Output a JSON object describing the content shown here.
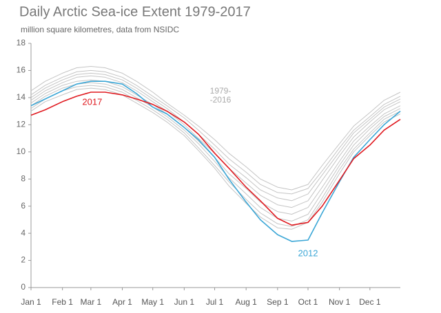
{
  "chart_data": {
    "type": "line",
    "title": "Daily Arctic Sea-ice Extent 1979-2017",
    "subtitle": "million square kilometres, data from NSIDC",
    "annotations": [
      "1979-",
      "-2016"
    ],
    "x": [
      1,
      15,
      32,
      46,
      60,
      74,
      91,
      105,
      121,
      135,
      152,
      166,
      182,
      196,
      213,
      227,
      244,
      258,
      274,
      288,
      305,
      319,
      335,
      349,
      365
    ],
    "xlim": [
      1,
      365
    ],
    "xticks": [
      {
        "value": 1,
        "label": "Jan 1"
      },
      {
        "value": 32,
        "label": "Feb 1"
      },
      {
        "value": 60,
        "label": "Mar 1"
      },
      {
        "value": 91,
        "label": "Apr 1"
      },
      {
        "value": 121,
        "label": "May 1"
      },
      {
        "value": 152,
        "label": "Jun 1"
      },
      {
        "value": 182,
        "label": "Jul 1"
      },
      {
        "value": 213,
        "label": "Aug 1"
      },
      {
        "value": 244,
        "label": "Sep 1"
      },
      {
        "value": 274,
        "label": "Oct 1"
      },
      {
        "value": 305,
        "label": "Nov 1"
      },
      {
        "value": 335,
        "label": "Dec 1"
      }
    ],
    "ylim": [
      0,
      18
    ],
    "yticks": [
      0,
      2,
      4,
      6,
      8,
      10,
      12,
      14,
      16,
      18
    ],
    "grid": false,
    "series": [
      {
        "color": "#c4c4c4",
        "values": [
          14.5,
          15.2,
          15.8,
          16.2,
          16.3,
          16.2,
          15.8,
          15.2,
          14.4,
          13.6,
          12.7,
          11.9,
          10.9,
          9.9,
          8.9,
          8.0,
          7.4,
          7.2,
          7.6,
          9.0,
          10.6,
          11.9,
          12.9,
          13.8,
          14.4
        ]
      },
      {
        "color": "#c4c4c4",
        "values": [
          14.2,
          14.9,
          15.5,
          15.9,
          16.0,
          15.9,
          15.5,
          14.9,
          14.1,
          13.4,
          12.5,
          11.6,
          10.5,
          9.5,
          8.5,
          7.6,
          7.0,
          6.9,
          7.3,
          8.6,
          10.3,
          11.6,
          12.6,
          13.5,
          14.1
        ]
      },
      {
        "color": "#c4c4c4",
        "values": [
          14.0,
          14.7,
          15.3,
          15.7,
          15.8,
          15.7,
          15.3,
          14.7,
          13.9,
          13.2,
          12.2,
          11.3,
          10.2,
          9.1,
          8.1,
          7.2,
          6.6,
          6.4,
          6.9,
          8.3,
          10.0,
          11.4,
          12.4,
          13.3,
          13.9
        ]
      },
      {
        "color": "#c4c4c4",
        "values": [
          13.8,
          14.5,
          15.1,
          15.5,
          15.6,
          15.5,
          15.1,
          14.5,
          13.7,
          13.0,
          12.0,
          11.0,
          9.9,
          8.8,
          7.7,
          6.8,
          6.1,
          5.9,
          6.4,
          7.9,
          9.7,
          11.1,
          12.2,
          13.1,
          13.7
        ]
      },
      {
        "color": "#c4c4c4",
        "values": [
          13.6,
          14.3,
          14.9,
          15.2,
          15.3,
          15.2,
          14.8,
          14.2,
          13.5,
          12.8,
          11.8,
          10.8,
          9.6,
          8.4,
          7.3,
          6.3,
          5.6,
          5.4,
          5.9,
          7.4,
          9.3,
          10.8,
          11.9,
          12.8,
          13.4
        ]
      },
      {
        "color": "#c4c4c4",
        "values": [
          13.4,
          14.1,
          14.7,
          15.0,
          15.1,
          15.0,
          14.6,
          14.0,
          13.3,
          12.6,
          11.6,
          10.6,
          9.3,
          8.1,
          6.9,
          5.9,
          5.1,
          4.9,
          5.4,
          7.0,
          9.0,
          10.5,
          11.7,
          12.6,
          13.2
        ]
      },
      {
        "color": "#c4c4c4",
        "values": [
          13.2,
          13.9,
          14.5,
          14.8,
          14.9,
          14.8,
          14.4,
          13.8,
          13.1,
          12.4,
          11.4,
          10.3,
          9.0,
          7.8,
          6.5,
          5.5,
          4.7,
          4.5,
          5.0,
          6.6,
          8.7,
          10.2,
          11.4,
          12.4,
          13.0
        ]
      },
      {
        "color": "#c4c4c4",
        "values": [
          13.0,
          13.7,
          14.2,
          14.6,
          14.7,
          14.6,
          14.2,
          13.6,
          12.9,
          12.2,
          11.2,
          10.1,
          8.8,
          7.5,
          6.2,
          5.2,
          4.4,
          4.3,
          4.8,
          6.3,
          8.4,
          10.0,
          11.2,
          12.2,
          12.8
        ]
      },
      {
        "name": "2012",
        "color": "#3aa6d6",
        "values": [
          13.4,
          13.9,
          14.5,
          15.0,
          15.2,
          15.2,
          15.0,
          14.3,
          13.3,
          12.8,
          11.8,
          10.9,
          9.6,
          8.0,
          6.3,
          5.0,
          3.9,
          3.4,
          3.5,
          5.5,
          7.8,
          9.6,
          10.9,
          12.0,
          13.0
        ]
      },
      {
        "name": "2017",
        "color": "#e0191f",
        "values": [
          12.7,
          13.1,
          13.7,
          14.1,
          14.4,
          14.4,
          14.2,
          13.9,
          13.5,
          13.0,
          12.2,
          11.3,
          9.9,
          8.8,
          7.4,
          6.4,
          5.1,
          4.6,
          4.8,
          6.0,
          7.9,
          9.5,
          10.5,
          11.6,
          12.4
        ]
      }
    ]
  }
}
